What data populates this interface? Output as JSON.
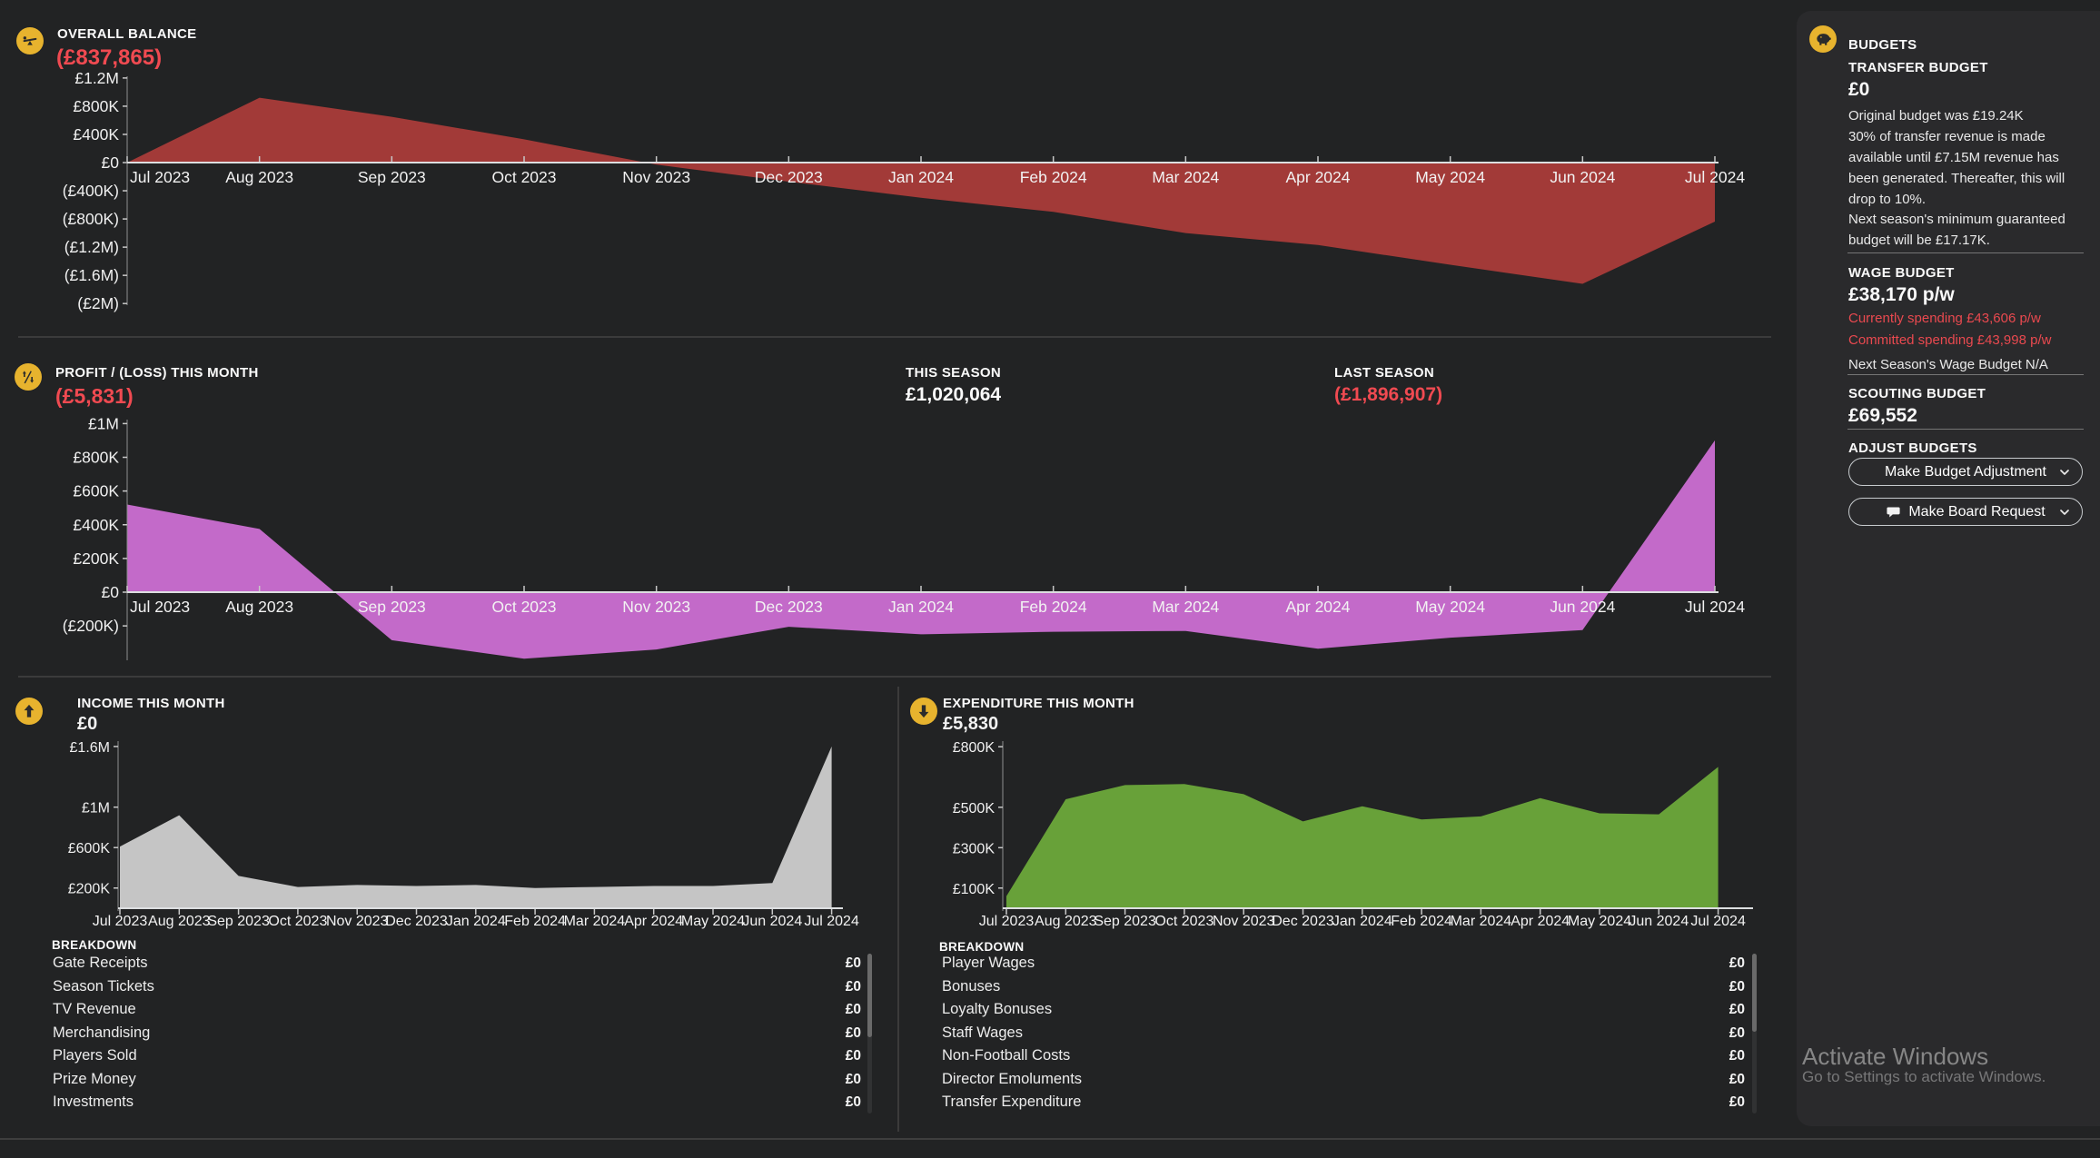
{
  "months": [
    "Jul 2023",
    "Aug 2023",
    "Sep 2023",
    "Oct 2023",
    "Nov 2023",
    "Dec 2023",
    "Jan 2024",
    "Feb 2024",
    "Mar 2024",
    "Apr 2024",
    "May 2024",
    "Jun 2024",
    "Jul 2024"
  ],
  "colors": {
    "background": "#222324",
    "sidebar_background": "#2a2a2c",
    "accent_yellow": "#e7b32e",
    "negative_red_text": "#f04a51",
    "balance_area": "#a23a38",
    "profit_area": "#c36ac9",
    "income_area": "#c5c5c5",
    "expenditure_area": "#68a139",
    "axis_line": "#dcdee0"
  },
  "sections": {
    "overall_balance": {
      "icon": "balance-scale-icon",
      "label": "OVERALL BALANCE",
      "value": "(£837,865)"
    },
    "profit_loss": {
      "icon": "percent-arrows-icon",
      "label": "PROFIT / (LOSS) THIS MONTH",
      "value": "(£5,831)",
      "this_season_label": "THIS SEASON",
      "this_season_value": "£1,020,064",
      "last_season_label": "LAST SEASON",
      "last_season_value": "(£1,896,907)"
    },
    "income": {
      "icon": "up-arrow-icon",
      "label": "INCOME THIS MONTH",
      "value": "£0",
      "breakdown_label": "BREAKDOWN",
      "breakdown": [
        {
          "label": "Gate Receipts",
          "value": "£0"
        },
        {
          "label": "Season Tickets",
          "value": "£0"
        },
        {
          "label": "TV Revenue",
          "value": "£0"
        },
        {
          "label": "Merchandising",
          "value": "£0"
        },
        {
          "label": "Players Sold",
          "value": "£0"
        },
        {
          "label": "Prize Money",
          "value": "£0"
        },
        {
          "label": "Investments",
          "value": "£0"
        }
      ]
    },
    "expenditure": {
      "icon": "down-arrow-icon",
      "label": "EXPENDITURE THIS MONTH",
      "value": "£5,830",
      "breakdown_label": "BREAKDOWN",
      "breakdown": [
        {
          "label": "Player Wages",
          "value": "£0"
        },
        {
          "label": "Bonuses",
          "value": "£0"
        },
        {
          "label": "Loyalty Bonuses",
          "value": "£0"
        },
        {
          "label": "Staff Wages",
          "value": "£0"
        },
        {
          "label": "Non-Football Costs",
          "value": "£0"
        },
        {
          "label": "Director Emoluments",
          "value": "£0"
        },
        {
          "label": "Transfer Expenditure",
          "value": "£0"
        }
      ]
    }
  },
  "sidebar": {
    "icon": "piggy-bank-icon",
    "title": "BUDGETS",
    "transfer_budget": {
      "label": "TRANSFER BUDGET",
      "value": "£0",
      "original": "Original budget was £19.24K",
      "rule": "30% of transfer revenue is made available until £7.15M revenue has been generated. Thereafter, this will drop to 10%.",
      "next_season": "Next season's minimum guaranteed budget will be £17.17K."
    },
    "wage_budget": {
      "label": "WAGE BUDGET",
      "value": "£38,170 p/w",
      "currently": "Currently spending £43,606 p/w",
      "committed": "Committed spending £43,998 p/w",
      "next_season": "Next Season's Wage Budget N/A"
    },
    "scouting_budget": {
      "label": "SCOUTING BUDGET",
      "value": "£69,552"
    },
    "adjust": {
      "label": "ADJUST BUDGETS",
      "button_adjustment": "Make Budget Adjustment",
      "button_board_request": "Make Board Request"
    }
  },
  "watermark": {
    "line1": "Activate Windows",
    "line2": "Go to Settings to activate Windows."
  },
  "chart_data": [
    {
      "type": "area",
      "title": "OVERALL BALANCE",
      "x": [
        "Jul 2023",
        "Aug 2023",
        "Sep 2023",
        "Oct 2023",
        "Nov 2023",
        "Dec 2023",
        "Jan 2024",
        "Feb 2024",
        "Mar 2024",
        "Apr 2024",
        "May 2024",
        "Jun 2024",
        "Jul 2024"
      ],
      "values": [
        0,
        920000,
        650000,
        330000,
        -30000,
        -270000,
        -500000,
        -700000,
        -1000000,
        -1170000,
        -1450000,
        -1720000,
        -838000
      ],
      "y_ticks": [
        {
          "label": "£1.2M",
          "value": 1200000
        },
        {
          "label": "£800K",
          "value": 800000
        },
        {
          "label": "£400K",
          "value": 400000
        },
        {
          "label": "£0",
          "value": 0
        },
        {
          "label": "(£400K)",
          "value": -400000
        },
        {
          "label": "(£800K)",
          "value": -800000
        },
        {
          "label": "(£1.2M)",
          "value": -1200000
        },
        {
          "label": "(£1.6M)",
          "value": -1600000
        },
        {
          "label": "(£2M)",
          "value": -2000000
        }
      ],
      "ylim": [
        -2000000,
        1200000
      ],
      "color": "#a23a38",
      "grid": false,
      "legend": "none"
    },
    {
      "type": "area",
      "title": "PROFIT / (LOSS) THIS MONTH",
      "x": [
        "Jul 2023",
        "Aug 2023",
        "Sep 2023",
        "Oct 2023",
        "Nov 2023",
        "Dec 2023",
        "Jan 2024",
        "Feb 2024",
        "Mar 2024",
        "Apr 2024",
        "May 2024",
        "Jun 2024",
        "Jul 2024"
      ],
      "values": [
        520000,
        375000,
        -285000,
        -395000,
        -340000,
        -205000,
        -250000,
        -235000,
        -230000,
        -335000,
        -270000,
        -225000,
        900000
      ],
      "y_ticks": [
        {
          "label": "£1M",
          "value": 1000000
        },
        {
          "label": "£800K",
          "value": 800000
        },
        {
          "label": "£600K",
          "value": 600000
        },
        {
          "label": "£400K",
          "value": 400000
        },
        {
          "label": "£200K",
          "value": 200000
        },
        {
          "label": "£0",
          "value": 0
        },
        {
          "label": "(£200K)",
          "value": -200000
        }
      ],
      "ylim": [
        -400000,
        1000000
      ],
      "color": "#c36ac9",
      "grid": false,
      "legend": "none"
    },
    {
      "type": "area",
      "title": "INCOME THIS MONTH",
      "x": [
        "Jul 2023",
        "Aug 2023",
        "Sep 2023",
        "Oct 2023",
        "Nov 2023",
        "Dec 2023",
        "Jan 2024",
        "Feb 2024",
        "Mar 2024",
        "Apr 2024",
        "May 2024",
        "Jun 2024",
        "Jul 2024"
      ],
      "values": [
        610000,
        920000,
        320000,
        210000,
        230000,
        220000,
        230000,
        200000,
        210000,
        220000,
        220000,
        250000,
        1600000
      ],
      "y_ticks": [
        {
          "label": "£1.6M",
          "value": 1600000
        },
        {
          "label": "£1M",
          "value": 1000000
        },
        {
          "label": "£600K",
          "value": 600000
        },
        {
          "label": "£200K",
          "value": 200000
        }
      ],
      "ylim": [
        0,
        1650000
      ],
      "color": "#c5c5c5",
      "grid": false,
      "legend": "none"
    },
    {
      "type": "area",
      "title": "EXPENDITURE THIS MONTH",
      "x": [
        "Jul 2023",
        "Aug 2023",
        "Sep 2023",
        "Oct 2023",
        "Nov 2023",
        "Dec 2023",
        "Jan 2024",
        "Feb 2024",
        "Mar 2024",
        "Apr 2024",
        "May 2024",
        "Jun 2024",
        "Jul 2024"
      ],
      "values": [
        60000,
        540000,
        610000,
        615000,
        565000,
        430000,
        505000,
        440000,
        455000,
        545000,
        470000,
        465000,
        700000
      ],
      "y_ticks": [
        {
          "label": "£800K",
          "value": 800000
        },
        {
          "label": "£500K",
          "value": 500000
        },
        {
          "label": "£300K",
          "value": 300000
        },
        {
          "label": "£100K",
          "value": 100000
        }
      ],
      "ylim": [
        0,
        820000
      ],
      "color": "#68a139",
      "grid": false,
      "legend": "none"
    }
  ]
}
